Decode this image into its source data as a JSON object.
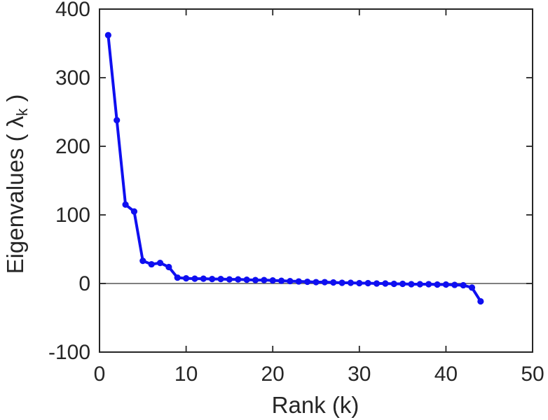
{
  "figure": {
    "background": "#ffffff",
    "axis_color": "#262626",
    "zero_line_color": "#555555",
    "line_color": "#0f0ff0",
    "marker_color": "#0f0ff0",
    "xlabel": "Rank (k)",
    "ylabel_prefix": "Eigenvalues ( ",
    "ylabel_symbol": "λ",
    "ylabel_sub": "k",
    "ylabel_suffix": " )"
  },
  "chart_data": {
    "type": "line",
    "title": "",
    "xlabel": "Rank (k)",
    "ylabel": "Eigenvalues ( λ_k )",
    "xlim": [
      0,
      50
    ],
    "ylim": [
      -100,
      400
    ],
    "x_ticks": [
      0,
      10,
      20,
      30,
      40,
      50
    ],
    "y_ticks": [
      -100,
      0,
      100,
      200,
      300,
      400
    ],
    "grid": false,
    "legend": null,
    "marker": "filled-circle",
    "zero_reference_line": 0,
    "series": [
      {
        "name": "eigenvalues",
        "x": [
          1,
          2,
          3,
          4,
          5,
          6,
          7,
          8,
          9,
          10,
          11,
          12,
          13,
          14,
          15,
          16,
          17,
          18,
          19,
          20,
          21,
          22,
          23,
          24,
          25,
          26,
          27,
          28,
          29,
          30,
          31,
          32,
          33,
          34,
          35,
          36,
          37,
          38,
          39,
          40,
          41,
          42,
          43,
          44
        ],
        "y": [
          362,
          238,
          115,
          105,
          33,
          28,
          30,
          24,
          8.5,
          7.5,
          7,
          7,
          6.5,
          6.5,
          6,
          6,
          5.5,
          5,
          5,
          4.5,
          4,
          3.5,
          3,
          2.5,
          2,
          2,
          1.5,
          1,
          1,
          0.5,
          0.5,
          0,
          0,
          -0.5,
          -0.5,
          -1,
          -1,
          -1,
          -1.5,
          -1.5,
          -2,
          -2.5,
          -6,
          -26
        ]
      }
    ]
  }
}
